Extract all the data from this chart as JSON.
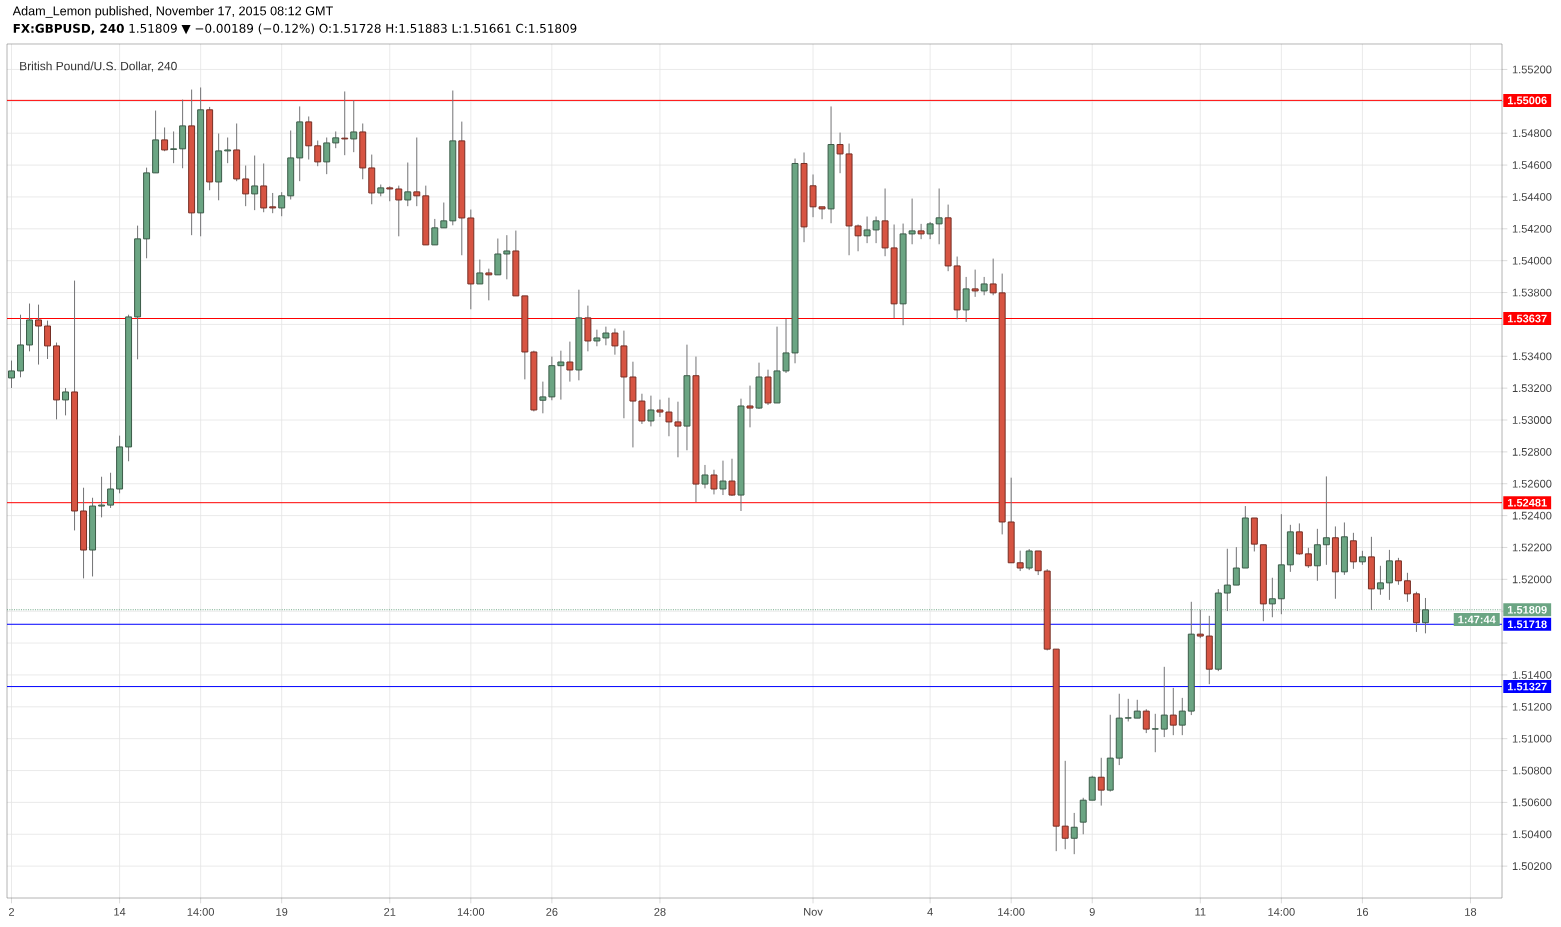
{
  "chart_data": {
    "type": "candlestick",
    "title": "Adam_Lemon published, November 17, 2015 08:12 GMT",
    "subtitle": "**FX:GBPUSD, 240** 1.51809 ▼ −0.00189 (−0.12%) O:1.51728 H:1.51883 L:1.51661 C:1.51809",
    "annotations": [
      "British Pound/U.S. Dollar, 240",
      "1:47:44"
    ],
    "categories": [
      "2",
      null,
      null,
      null,
      null,
      null,
      null,
      null,
      null,
      null,
      null,
      null,
      "14",
      null,
      null,
      null,
      null,
      null,
      null,
      null,
      null,
      "14:00",
      null,
      null,
      null,
      null,
      null,
      null,
      null,
      null,
      "19",
      null,
      null,
      null,
      null,
      null,
      null,
      null,
      null,
      null,
      null,
      null,
      "21",
      null,
      null,
      null,
      null,
      null,
      null,
      null,
      null,
      "14:00",
      null,
      null,
      null,
      null,
      null,
      null,
      null,
      null,
      "26",
      null,
      null,
      null,
      null,
      null,
      null,
      null,
      null,
      null,
      null,
      null,
      "28",
      null,
      null,
      null,
      null,
      null,
      null,
      null,
      null,
      null,
      null,
      null,
      null,
      null,
      null,
      null,
      null,
      "Nov",
      null,
      null,
      null,
      null,
      null,
      null,
      null,
      null,
      null,
      null,
      null,
      null,
      "4",
      null,
      null,
      null,
      null,
      null,
      null,
      null,
      null,
      "14:00",
      null,
      null,
      null,
      null,
      null,
      null,
      null,
      null,
      "9",
      null,
      null,
      null,
      null,
      null,
      null,
      null,
      null,
      null,
      null,
      null,
      "11",
      null,
      null,
      null,
      null,
      null,
      null,
      null,
      null,
      "14:00",
      null,
      null,
      null,
      null,
      null,
      null,
      null,
      null,
      "16",
      null,
      null,
      null,
      null,
      null,
      null,
      null,
      null,
      null,
      null,
      null,
      "18",
      null,
      null,
      null
    ],
    "ohlc": [
      [
        1.53264,
        1.53373,
        1.53201,
        1.53308
      ],
      [
        1.53308,
        1.53661,
        1.53268,
        1.53471
      ],
      [
        1.53471,
        1.53731,
        1.53431,
        1.53628
      ],
      [
        1.53628,
        1.53724,
        1.53348,
        1.5359
      ],
      [
        1.5359,
        1.53624,
        1.53383,
        1.53465
      ],
      [
        1.53465,
        1.53486,
        1.53004,
        1.53126
      ],
      [
        1.53126,
        1.53201,
        1.53029,
        1.53176
      ],
      [
        1.53176,
        1.53875,
        1.52307,
        1.52429
      ],
      [
        1.52429,
        1.52575,
        1.52006,
        1.52184
      ],
      [
        1.52184,
        1.52512,
        1.52018,
        1.5246
      ],
      [
        1.5246,
        1.52644,
        1.52389,
        1.52466
      ],
      [
        1.52466,
        1.52669,
        1.52448,
        1.52567
      ],
      [
        1.52567,
        1.52902,
        1.5254,
        1.52831
      ],
      [
        1.52831,
        1.53661,
        1.52741,
        1.53647
      ],
      [
        1.53647,
        1.5422,
        1.53381,
        1.54137
      ],
      [
        1.54137,
        1.54584,
        1.54015,
        1.54551
      ],
      [
        1.54551,
        1.54942,
        1.54551,
        1.54758
      ],
      [
        1.54758,
        1.54836,
        1.54687,
        1.54695
      ],
      [
        1.54698,
        1.54811,
        1.54612,
        1.54702
      ],
      [
        1.54702,
        1.55011,
        1.5458,
        1.54846
      ],
      [
        1.54846,
        1.55074,
        1.5416,
        1.543
      ],
      [
        1.543,
        1.55087,
        1.54153,
        1.54947
      ],
      [
        1.54947,
        1.54965,
        1.54442,
        1.54494
      ],
      [
        1.54494,
        1.54798,
        1.54379,
        1.54689
      ],
      [
        1.54689,
        1.54773,
        1.54612,
        1.54695
      ],
      [
        1.54695,
        1.54861,
        1.54499,
        1.54513
      ],
      [
        1.54513,
        1.54597,
        1.54342,
        1.54419
      ],
      [
        1.54419,
        1.5466,
        1.54317,
        1.54469
      ],
      [
        1.54469,
        1.5461,
        1.54304,
        1.54331
      ],
      [
        1.54338,
        1.54425,
        1.54298,
        1.54331
      ],
      [
        1.54331,
        1.5443,
        1.54279,
        1.54407
      ],
      [
        1.54407,
        1.54817,
        1.54384,
        1.54645
      ],
      [
        1.54645,
        1.54968,
        1.54499,
        1.54871
      ],
      [
        1.54871,
        1.54905,
        1.54635,
        1.54721
      ],
      [
        1.54721,
        1.54754,
        1.54593,
        1.5462
      ],
      [
        1.5462,
        1.54773,
        1.54543,
        1.54739
      ],
      [
        1.54739,
        1.54811,
        1.54706,
        1.54771
      ],
      [
        1.54769,
        1.55062,
        1.54662,
        1.54764
      ],
      [
        1.54764,
        1.55007,
        1.54681,
        1.54808
      ],
      [
        1.54808,
        1.54861,
        1.54511,
        1.54582
      ],
      [
        1.54582,
        1.54666,
        1.54354,
        1.54425
      ],
      [
        1.54425,
        1.54478,
        1.54404,
        1.54457
      ],
      [
        1.54457,
        1.54467,
        1.54373,
        1.5445
      ],
      [
        1.5445,
        1.54471,
        1.54153,
        1.54381
      ],
      [
        1.54381,
        1.54616,
        1.54342,
        1.54432
      ],
      [
        1.54432,
        1.54773,
        1.54342,
        1.54407
      ],
      [
        1.54407,
        1.54471,
        1.54099,
        1.54099
      ],
      [
        1.54099,
        1.54262,
        1.54099,
        1.54206
      ],
      [
        1.54206,
        1.54365,
        1.54206,
        1.5425
      ],
      [
        1.5425,
        1.55068,
        1.54222,
        1.54752
      ],
      [
        1.54752,
        1.54873,
        1.54034,
        1.54268
      ],
      [
        1.54268,
        1.54321,
        1.53695,
        1.53854
      ],
      [
        1.53854,
        1.54007,
        1.53854,
        1.53923
      ],
      [
        1.53923,
        1.5395,
        1.53751,
        1.53911
      ],
      [
        1.53911,
        1.54139,
        1.53911,
        1.54042
      ],
      [
        1.54042,
        1.5416,
        1.53883,
        1.54061
      ],
      [
        1.54061,
        1.54189,
        1.53779,
        1.53779
      ],
      [
        1.53779,
        1.53779,
        1.53255,
        1.53427
      ],
      [
        1.53427,
        1.53435,
        1.53054,
        1.53063
      ],
      [
        1.53124,
        1.53241,
        1.53042,
        1.53145
      ],
      [
        1.53145,
        1.53398,
        1.53124,
        1.53341
      ],
      [
        1.53341,
        1.53435,
        1.53128,
        1.53364
      ],
      [
        1.53364,
        1.53492,
        1.53241,
        1.53314
      ],
      [
        1.53314,
        1.53818,
        1.53249,
        1.53641
      ],
      [
        1.53641,
        1.53718,
        1.53431,
        1.53496
      ],
      [
        1.53496,
        1.53567,
        1.53463,
        1.53515
      ],
      [
        1.53515,
        1.53586,
        1.53469,
        1.53546
      ],
      [
        1.53546,
        1.53574,
        1.5341,
        1.53465
      ],
      [
        1.53465,
        1.53561,
        1.53011,
        1.5327
      ],
      [
        1.5327,
        1.53366,
        1.52828,
        1.53119
      ],
      [
        1.53119,
        1.53165,
        1.52975,
        1.52994
      ],
      [
        1.52994,
        1.53153,
        1.5296,
        1.53063
      ],
      [
        1.53063,
        1.53128,
        1.53019,
        1.5305
      ],
      [
        1.5305,
        1.5314,
        1.52898,
        1.52988
      ],
      [
        1.52988,
        1.53115,
        1.52766,
        1.52962
      ],
      [
        1.52962,
        1.53473,
        1.5281,
        1.53278
      ],
      [
        1.53278,
        1.53398,
        1.52485,
        1.52598
      ],
      [
        1.52598,
        1.52718,
        1.52571,
        1.52655
      ],
      [
        1.52655,
        1.52688,
        1.52533,
        1.52567
      ],
      [
        1.52567,
        1.52745,
        1.52529,
        1.52617
      ],
      [
        1.52617,
        1.52757,
        1.52523,
        1.52529
      ],
      [
        1.52529,
        1.53134,
        1.52429,
        1.53088
      ],
      [
        1.53088,
        1.53216,
        1.52954,
        1.53075
      ],
      [
        1.53075,
        1.5336,
        1.53069,
        1.5327
      ],
      [
        1.5327,
        1.53316,
        1.53094,
        1.53107
      ],
      [
        1.53107,
        1.53586,
        1.53107,
        1.53308
      ],
      [
        1.53308,
        1.53634,
        1.53295,
        1.53421
      ],
      [
        1.53421,
        1.54641,
        1.53356,
        1.5461
      ],
      [
        1.5461,
        1.54679,
        1.54116,
        1.54212
      ],
      [
        1.5447,
        1.54541,
        1.54273,
        1.54338
      ],
      [
        1.54338,
        1.54338,
        1.5426,
        1.54325
      ],
      [
        1.54325,
        1.54968,
        1.54235,
        1.54729
      ],
      [
        1.54729,
        1.54804,
        1.54549,
        1.5467
      ],
      [
        1.5467,
        1.54735,
        1.54034,
        1.54218
      ],
      [
        1.54218,
        1.54227,
        1.54059,
        1.54156
      ],
      [
        1.54156,
        1.54277,
        1.5411,
        1.54193
      ],
      [
        1.54193,
        1.54277,
        1.5411,
        1.5425
      ],
      [
        1.5425,
        1.54453,
        1.54028,
        1.5408
      ],
      [
        1.5408,
        1.54227,
        1.53639,
        1.53729
      ],
      [
        1.53729,
        1.54233,
        1.53595,
        1.54168
      ],
      [
        1.54168,
        1.5439,
        1.54103,
        1.54187
      ],
      [
        1.54187,
        1.54231,
        1.54135,
        1.54168
      ],
      [
        1.54168,
        1.54243,
        1.54135,
        1.54231
      ],
      [
        1.54231,
        1.54453,
        1.54103,
        1.54269
      ],
      [
        1.54269,
        1.54352,
        1.53934,
        1.53967
      ],
      [
        1.53967,
        1.54026,
        1.53632,
        1.53691
      ],
      [
        1.53691,
        1.53898,
        1.53616,
        1.53823
      ],
      [
        1.53823,
        1.53944,
        1.53773,
        1.5381
      ],
      [
        1.5381,
        1.53898,
        1.53783,
        1.53854
      ],
      [
        1.53854,
        1.54013,
        1.53783,
        1.53798
      ],
      [
        1.53798,
        1.53919,
        1.52282,
        1.5236
      ],
      [
        1.5236,
        1.52638,
        1.52104,
        1.52104
      ],
      [
        1.52104,
        1.5218,
        1.52052,
        1.52071
      ],
      [
        1.52071,
        1.5219,
        1.52058,
        1.52178
      ],
      [
        1.52178,
        1.52178,
        1.52027,
        1.52054
      ],
      [
        1.52052,
        1.52064,
        1.51554,
        1.51562
      ],
      [
        1.51562,
        1.51562,
        1.50294,
        1.50451
      ],
      [
        1.50451,
        1.50861,
        1.50306,
        1.50375
      ],
      [
        1.50375,
        1.50534,
        1.50275,
        1.50444
      ],
      [
        1.50476,
        1.50629,
        1.504,
        1.50614
      ],
      [
        1.50614,
        1.50767,
        1.50614,
        1.50758
      ],
      [
        1.50758,
        1.5088,
        1.5058,
        1.50677
      ],
      [
        1.50677,
        1.5115,
        1.50668,
        1.50878
      ],
      [
        1.50878,
        1.51282,
        1.50834,
        1.51129
      ],
      [
        1.51129,
        1.5125,
        1.51108,
        1.51131
      ],
      [
        1.51129,
        1.51244,
        1.51129,
        1.51173
      ],
      [
        1.51173,
        1.51185,
        1.51035,
        1.5106
      ],
      [
        1.5106,
        1.51156,
        1.50915,
        1.51062
      ],
      [
        1.5106,
        1.51451,
        1.5101,
        1.51148
      ],
      [
        1.51148,
        1.51319,
        1.51022,
        1.51085
      ],
      [
        1.51085,
        1.51256,
        1.51022,
        1.51173
      ],
      [
        1.51173,
        1.51859,
        1.51148,
        1.51656
      ],
      [
        1.51656,
        1.51809,
        1.51631,
        1.51644
      ],
      [
        1.51644,
        1.51771,
        1.51342,
        1.51436
      ],
      [
        1.51436,
        1.51939,
        1.51424,
        1.51914
      ],
      [
        1.51914,
        1.52192,
        1.51801,
        1.51964
      ],
      [
        1.51964,
        1.52202,
        1.51964,
        1.52071
      ],
      [
        1.52071,
        1.5246,
        1.52071,
        1.52385
      ],
      [
        1.52385,
        1.52385,
        1.52175,
        1.52221
      ],
      [
        1.52217,
        1.52217,
        1.51737,
        1.51846
      ],
      [
        1.51846,
        1.5201,
        1.51762,
        1.51878
      ],
      [
        1.51878,
        1.52409,
        1.51781,
        1.52091
      ],
      [
        1.52091,
        1.52342,
        1.52047,
        1.52298
      ],
      [
        1.52298,
        1.52351,
        1.52154,
        1.5216
      ],
      [
        1.5216,
        1.52198,
        1.52072,
        1.52085
      ],
      [
        1.52085,
        1.52317,
        1.51991,
        1.52217
      ],
      [
        1.52217,
        1.52646,
        1.52091,
        1.52261
      ],
      [
        1.52261,
        1.52332,
        1.51878,
        1.52047
      ],
      [
        1.52047,
        1.52357,
        1.52028,
        1.52267
      ],
      [
        1.52242,
        1.52292,
        1.52066,
        1.5211
      ],
      [
        1.5211,
        1.52179,
        1.52091,
        1.52141
      ],
      [
        1.52141,
        1.52267,
        1.51808,
        1.5194
      ],
      [
        1.5194,
        1.52085,
        1.51903,
        1.51978
      ],
      [
        1.51978,
        1.52185,
        1.51871,
        1.52116
      ],
      [
        1.52116,
        1.52135,
        1.51966,
        1.51991
      ],
      [
        1.51991,
        1.52041,
        1.51859,
        1.51909
      ],
      [
        1.51909,
        1.51922,
        1.5167,
        1.51728
      ],
      [
        1.51728,
        1.51883,
        1.51661,
        1.51809
      ],
      null,
      null,
      null,
      null,
      null,
      null,
      null,
      null
    ],
    "colors": [
      "#6ba583",
      "#6ba583",
      "#6ba583",
      "#d75442",
      "#d75442",
      "#d75442",
      "#6ba583",
      "#d75442",
      "#d75442",
      "#6ba583",
      "#6ba583",
      "#6ba583",
      "#6ba583",
      "#6ba583",
      "#6ba583",
      "#6ba583",
      "#6ba583",
      "#d75442",
      "#6ba583",
      "#6ba583",
      "#d75442",
      "#6ba583",
      "#d75442",
      "#6ba583",
      "#6ba583",
      "#d75442",
      "#d75442",
      "#6ba583",
      "#d75442",
      "#d75442",
      "#6ba583",
      "#6ba583",
      "#6ba583",
      "#d75442",
      "#d75442",
      "#6ba583",
      "#6ba583",
      "#d75442",
      "#6ba583",
      "#d75442",
      "#d75442",
      "#6ba583",
      "#d75442",
      "#d75442",
      "#6ba583",
      "#d75442",
      "#d75442",
      "#6ba583",
      "#6ba583",
      "#6ba583",
      "#d75442",
      "#d75442",
      "#6ba583",
      "#d75442",
      "#6ba583",
      "#6ba583",
      "#d75442",
      "#d75442",
      "#d75442",
      "#6ba583",
      "#6ba583",
      "#6ba583",
      "#d75442",
      "#6ba583",
      "#d75442",
      "#6ba583",
      "#6ba583",
      "#d75442",
      "#d75442",
      "#d75442",
      "#d75442",
      "#6ba583",
      "#d75442",
      "#d75442",
      "#d75442",
      "#6ba583",
      "#d75442",
      "#6ba583",
      "#d75442",
      "#6ba583",
      "#d75442",
      "#6ba583",
      "#d75442",
      "#6ba583",
      "#d75442",
      "#6ba583",
      "#6ba583",
      "#6ba583",
      "#d75442",
      "#d75442",
      "#d75442",
      "#6ba583",
      "#d75442",
      "#d75442",
      "#d75442",
      "#6ba583",
      "#6ba583",
      "#d75442",
      "#d75442",
      "#6ba583",
      "#6ba583",
      "#d75442",
      "#6ba583",
      "#6ba583",
      "#d75442",
      "#d75442",
      "#6ba583",
      "#d75442",
      "#6ba583",
      "#d75442",
      "#d75442",
      "#d75442",
      "#d75442",
      "#6ba583",
      "#d75442",
      "#d75442",
      "#d75442",
      "#d75442",
      "#6ba583",
      "#6ba583",
      "#6ba583",
      "#d75442",
      "#6ba583",
      "#6ba583",
      "#6ba583",
      "#6ba583",
      "#d75442",
      "#6ba583",
      "#6ba583",
      "#d75442",
      "#6ba583",
      "#6ba583",
      "#d75442",
      "#d75442",
      "#6ba583",
      "#6ba583",
      "#6ba583",
      "#6ba583",
      "#d75442",
      "#d75442",
      "#6ba583",
      "#6ba583",
      "#6ba583",
      "#d75442",
      "#d75442",
      "#6ba583",
      "#6ba583",
      "#d75442",
      "#6ba583",
      "#d75442",
      "#6ba583",
      "#d75442",
      "#6ba583",
      "#6ba583",
      "#d75442",
      "#d75442",
      "#d75442",
      "#6ba583",
      null,
      null,
      null,
      null,
      null,
      null,
      null,
      null
    ],
    "ylim": [
      1.5,
      1.5536
    ],
    "yticks": [
      {
        "value": 1.502,
        "label": "1.50200"
      },
      {
        "value": 1.504,
        "label": "1.50400"
      },
      {
        "value": 1.506,
        "label": "1.50600"
      },
      {
        "value": 1.508,
        "label": "1.50800"
      },
      {
        "value": 1.51,
        "label": "1.51000"
      },
      {
        "value": 1.512,
        "label": "1.51200"
      },
      {
        "value": 1.514,
        "label": "1.51400"
      },
      {
        "value": 1.516,
        "label": null
      },
      {
        "value": 1.518,
        "label": null
      },
      {
        "value": 1.52,
        "label": "1.52000"
      },
      {
        "value": 1.522,
        "label": "1.52200"
      },
      {
        "value": 1.524,
        "label": "1.52400"
      },
      {
        "value": 1.526,
        "label": "1.52600"
      },
      {
        "value": 1.528,
        "label": "1.52800"
      },
      {
        "value": 1.53,
        "label": "1.53000"
      },
      {
        "value": 1.532,
        "label": "1.53200"
      },
      {
        "value": 1.534,
        "label": "1.53400"
      },
      {
        "value": 1.536,
        "label": null
      },
      {
        "value": 1.538,
        "label": "1.53800"
      },
      {
        "value": 1.54,
        "label": "1.54000"
      },
      {
        "value": 1.542,
        "label": "1.54200"
      },
      {
        "value": 1.544,
        "label": "1.54400"
      },
      {
        "value": 1.546,
        "label": "1.54600"
      },
      {
        "value": 1.548,
        "label": "1.54800"
      },
      {
        "value": 1.55,
        "label": null
      },
      {
        "value": 1.552,
        "label": "1.55200"
      }
    ],
    "ref_lines": [
      {
        "axis": "y",
        "value": 1.55006,
        "label": "1.55006",
        "color": "#ff0000",
        "line_style": "solid"
      },
      {
        "axis": "y",
        "value": 1.53637,
        "label": "1.53637",
        "color": "#ff0000",
        "line_style": "solid"
      },
      {
        "axis": "y",
        "value": 1.52481,
        "label": "1.52481",
        "color": "#ff0000",
        "line_style": "solid"
      },
      {
        "axis": "y",
        "value": 1.51327,
        "label": "1.51327",
        "color": "#0000ff",
        "line_style": "solid"
      },
      {
        "axis": "y",
        "value": 1.51718,
        "label": "1.51718",
        "color": "#0000ff",
        "line_style": "solid"
      },
      {
        "axis": "y",
        "value": 1.51809,
        "label": "1.51809",
        "color": "#6ba583",
        "line_style": "dotted"
      }
    ],
    "grid": true
  }
}
